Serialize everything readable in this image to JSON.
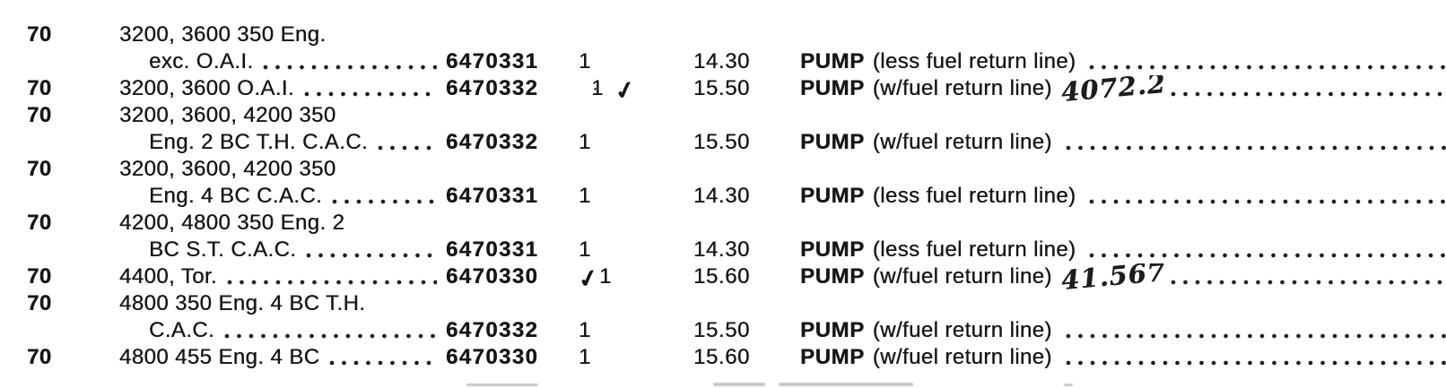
{
  "document": {
    "kind": "scanned parts catalog listing",
    "paper_color": "#ffffff",
    "ink_color": "#161616"
  },
  "table": {
    "columns": [
      "year",
      "application",
      "part_number",
      "qty",
      "price",
      "part_name"
    ],
    "rows": [
      {
        "year": "70",
        "application_lines": [
          {
            "text": "3200, 3600 350 Eng.",
            "indent": false,
            "leader": false
          },
          {
            "text": "exc. O.A.I.",
            "indent": true,
            "leader": true
          }
        ],
        "part_number": "6470331",
        "qty_dot": "",
        "qty_check_pre": "",
        "qty": "1",
        "qty_check_post": "",
        "price": "14.30",
        "part_name": "PUMP",
        "part_note": "(less fuel return line)",
        "handwriting": ""
      },
      {
        "year": "70",
        "application_lines": [
          {
            "text": "3200, 3600 O.A.I.",
            "indent": false,
            "leader": true
          }
        ],
        "part_number": "6470332",
        "qty_dot": "·",
        "qty_check_pre": "",
        "qty": "1",
        "qty_check_post": "✓",
        "price": "15.50",
        "part_name": "PUMP",
        "part_note": "(w/fuel return line)",
        "handwriting": "4072.2"
      },
      {
        "year": "70",
        "application_lines": [
          {
            "text": "3200, 3600, 4200 350",
            "indent": false,
            "leader": false
          },
          {
            "text": "Eng. 2 BC T.H. C.A.C.",
            "indent": true,
            "leader": true
          }
        ],
        "part_number": "6470332",
        "qty_dot": "",
        "qty_check_pre": "",
        "qty": "1",
        "qty_check_post": "",
        "price": "15.50",
        "part_name": "PUMP",
        "part_note": "(w/fuel return line)",
        "handwriting": ""
      },
      {
        "year": "70",
        "application_lines": [
          {
            "text": "3200, 3600, 4200 350",
            "indent": false,
            "leader": false
          },
          {
            "text": "Eng. 4 BC C.A.C.",
            "indent": true,
            "leader": true
          }
        ],
        "part_number": "6470331",
        "qty_dot": "",
        "qty_check_pre": "",
        "qty": "1",
        "qty_check_post": "",
        "price": "14.30",
        "part_name": "PUMP",
        "part_note": "(less fuel return line)",
        "handwriting": ""
      },
      {
        "year": "70",
        "application_lines": [
          {
            "text": "4200, 4800 350 Eng. 2",
            "indent": false,
            "leader": false
          },
          {
            "text": "BC S.T. C.A.C.",
            "indent": true,
            "leader": true
          }
        ],
        "part_number": "6470331",
        "qty_dot": "",
        "qty_check_pre": "",
        "qty": "1",
        "qty_check_post": "",
        "price": "14.30",
        "part_name": "PUMP",
        "part_note": "(less fuel return line)",
        "handwriting": ""
      },
      {
        "year": "70",
        "application_lines": [
          {
            "text": "4400, Tor.",
            "indent": false,
            "leader": true
          }
        ],
        "part_number": "6470330",
        "qty_dot": "",
        "qty_check_pre": "✓",
        "qty": "1",
        "qty_check_post": "",
        "price": "15.60",
        "part_name": "PUMP",
        "part_note": "(w/fuel return line)",
        "handwriting": "41.567"
      },
      {
        "year": "70",
        "application_lines": [
          {
            "text": "4800 350 Eng. 4 BC T.H.",
            "indent": false,
            "leader": false
          },
          {
            "text": "C.A.C.",
            "indent": true,
            "leader": true
          }
        ],
        "part_number": "6470332",
        "qty_dot": "",
        "qty_check_pre": "",
        "qty": "1",
        "qty_check_post": "",
        "price": "15.50",
        "part_name": "PUMP",
        "part_note": "(w/fuel return line)",
        "handwriting": ""
      },
      {
        "year": "70",
        "application_lines": [
          {
            "text": "4800 455 Eng. 4 BC",
            "indent": false,
            "leader": true
          }
        ],
        "part_number": "6470330",
        "qty_dot": "",
        "qty_check_pre": "",
        "qty": "1",
        "qty_check_post": "",
        "price": "15.60",
        "part_name": "PUMP",
        "part_note": "(w/fuel return line)",
        "handwriting": ""
      }
    ]
  }
}
